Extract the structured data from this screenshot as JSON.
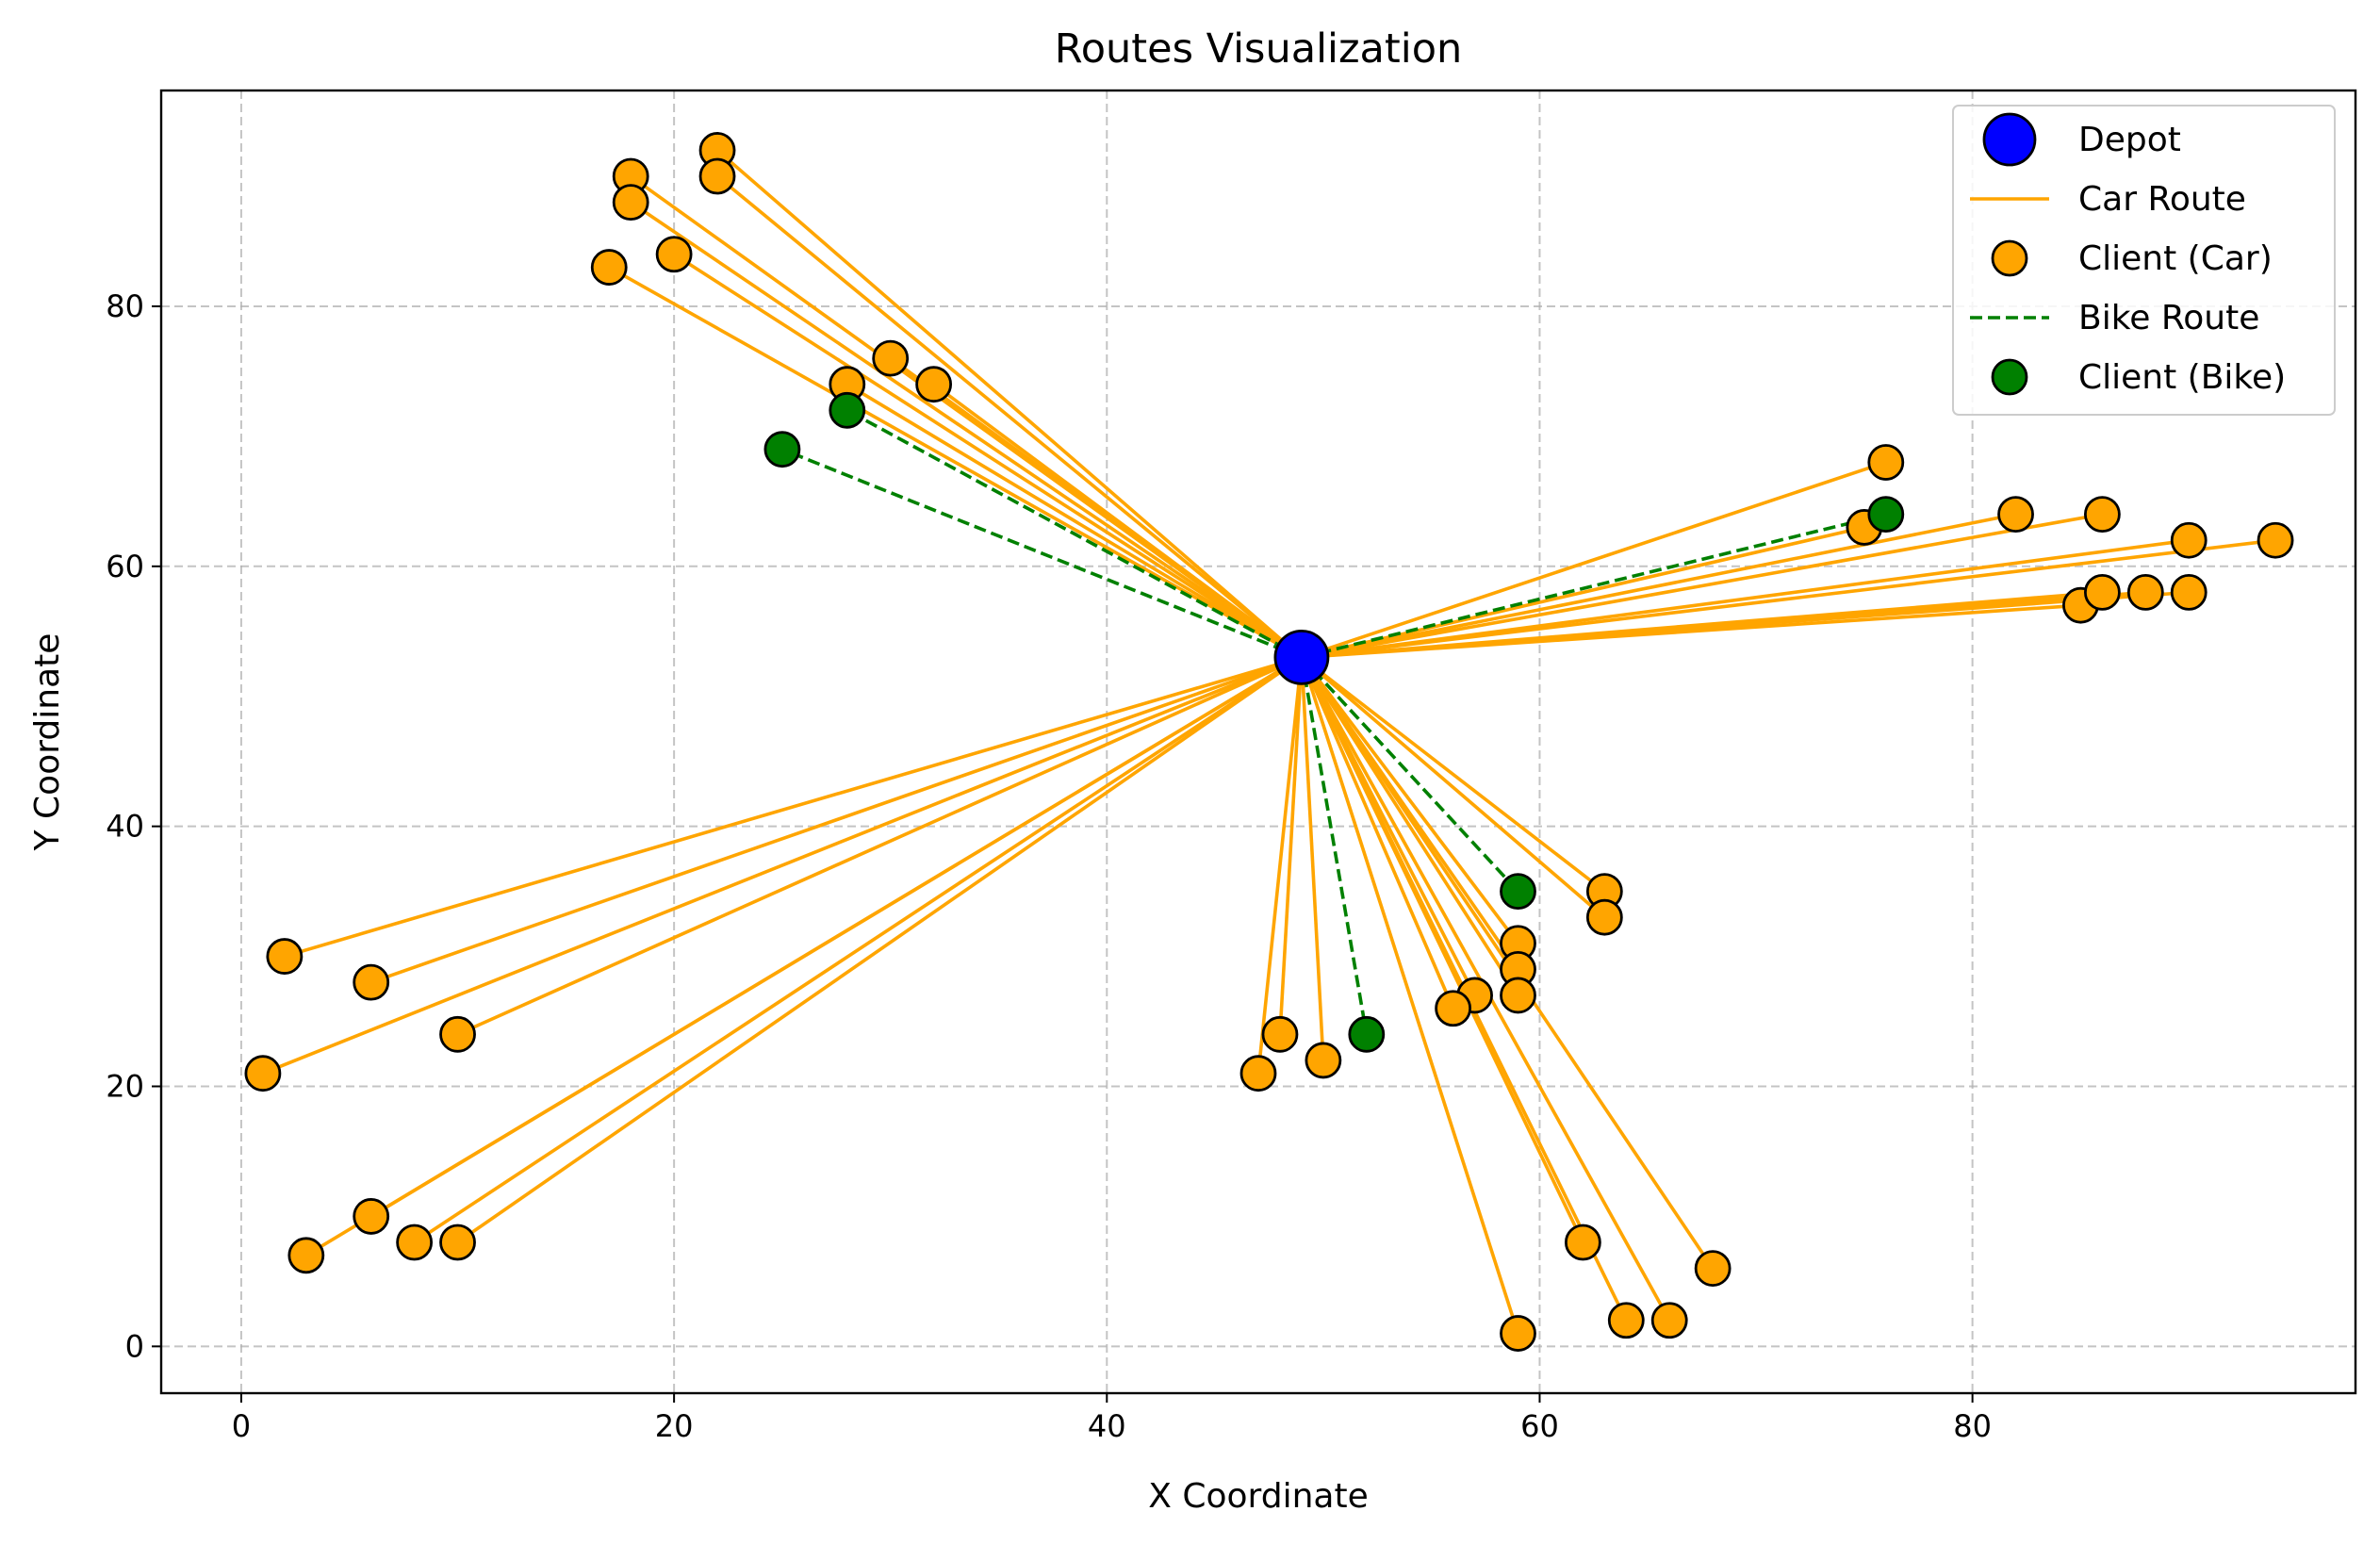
{
  "chart_data": {
    "type": "scatter",
    "title": "Routes Visualization",
    "xlabel": "X Coordinate",
    "ylabel": "Y Coordinate",
    "xlim": [
      -3.7,
      97.7
    ],
    "ylim": [
      -3.6,
      96.6
    ],
    "xticks": [
      0,
      20,
      40,
      60,
      80
    ],
    "yticks": [
      0,
      20,
      40,
      60,
      80
    ],
    "grid": true,
    "legend_position": "top-right",
    "colors": {
      "depot": "#0000ff",
      "car": "#ffa500",
      "bike": "#008000",
      "edge": "#000000",
      "grid": "#b0b0b0"
    },
    "legend": [
      {
        "label": "Depot",
        "kind": "depot"
      },
      {
        "label": "Car Route",
        "kind": "car-line"
      },
      {
        "label": "Client (Car)",
        "kind": "car-point"
      },
      {
        "label": "Bike Route",
        "kind": "bike-line"
      },
      {
        "label": "Client (Bike)",
        "kind": "bike-point"
      }
    ],
    "depot": {
      "x": 49,
      "y": 53
    },
    "car_clients": [
      {
        "x": 22,
        "y": 92
      },
      {
        "x": 18,
        "y": 90
      },
      {
        "x": 22,
        "y": 90
      },
      {
        "x": 18,
        "y": 88
      },
      {
        "x": 20,
        "y": 84
      },
      {
        "x": 17,
        "y": 83
      },
      {
        "x": 30,
        "y": 76
      },
      {
        "x": 28,
        "y": 74
      },
      {
        "x": 32,
        "y": 74
      },
      {
        "x": 76,
        "y": 68
      },
      {
        "x": 82,
        "y": 64
      },
      {
        "x": 86,
        "y": 64
      },
      {
        "x": 75,
        "y": 63
      },
      {
        "x": 90,
        "y": 62
      },
      {
        "x": 94,
        "y": 62
      },
      {
        "x": 85,
        "y": 57
      },
      {
        "x": 86,
        "y": 58
      },
      {
        "x": 88,
        "y": 58
      },
      {
        "x": 90,
        "y": 58
      },
      {
        "x": 63,
        "y": 35
      },
      {
        "x": 63,
        "y": 33
      },
      {
        "x": 59,
        "y": 31
      },
      {
        "x": 59,
        "y": 29
      },
      {
        "x": 59,
        "y": 27
      },
      {
        "x": 57,
        "y": 27
      },
      {
        "x": 56,
        "y": 26
      },
      {
        "x": 48,
        "y": 24
      },
      {
        "x": 47,
        "y": 21
      },
      {
        "x": 50,
        "y": 22
      },
      {
        "x": 62,
        "y": 8
      },
      {
        "x": 68,
        "y": 6
      },
      {
        "x": 64,
        "y": 2
      },
      {
        "x": 66,
        "y": 2
      },
      {
        "x": 59,
        "y": 1
      },
      {
        "x": 2,
        "y": 30
      },
      {
        "x": 6,
        "y": 28
      },
      {
        "x": 10,
        "y": 24
      },
      {
        "x": 1,
        "y": 21
      },
      {
        "x": 6,
        "y": 10
      },
      {
        "x": 3,
        "y": 7
      },
      {
        "x": 8,
        "y": 8
      },
      {
        "x": 10,
        "y": 8
      }
    ],
    "bike_clients": [
      {
        "x": 25,
        "y": 69
      },
      {
        "x": 28,
        "y": 72
      },
      {
        "x": 76,
        "y": 64
      },
      {
        "x": 59,
        "y": 35
      },
      {
        "x": 52,
        "y": 24
      }
    ]
  }
}
